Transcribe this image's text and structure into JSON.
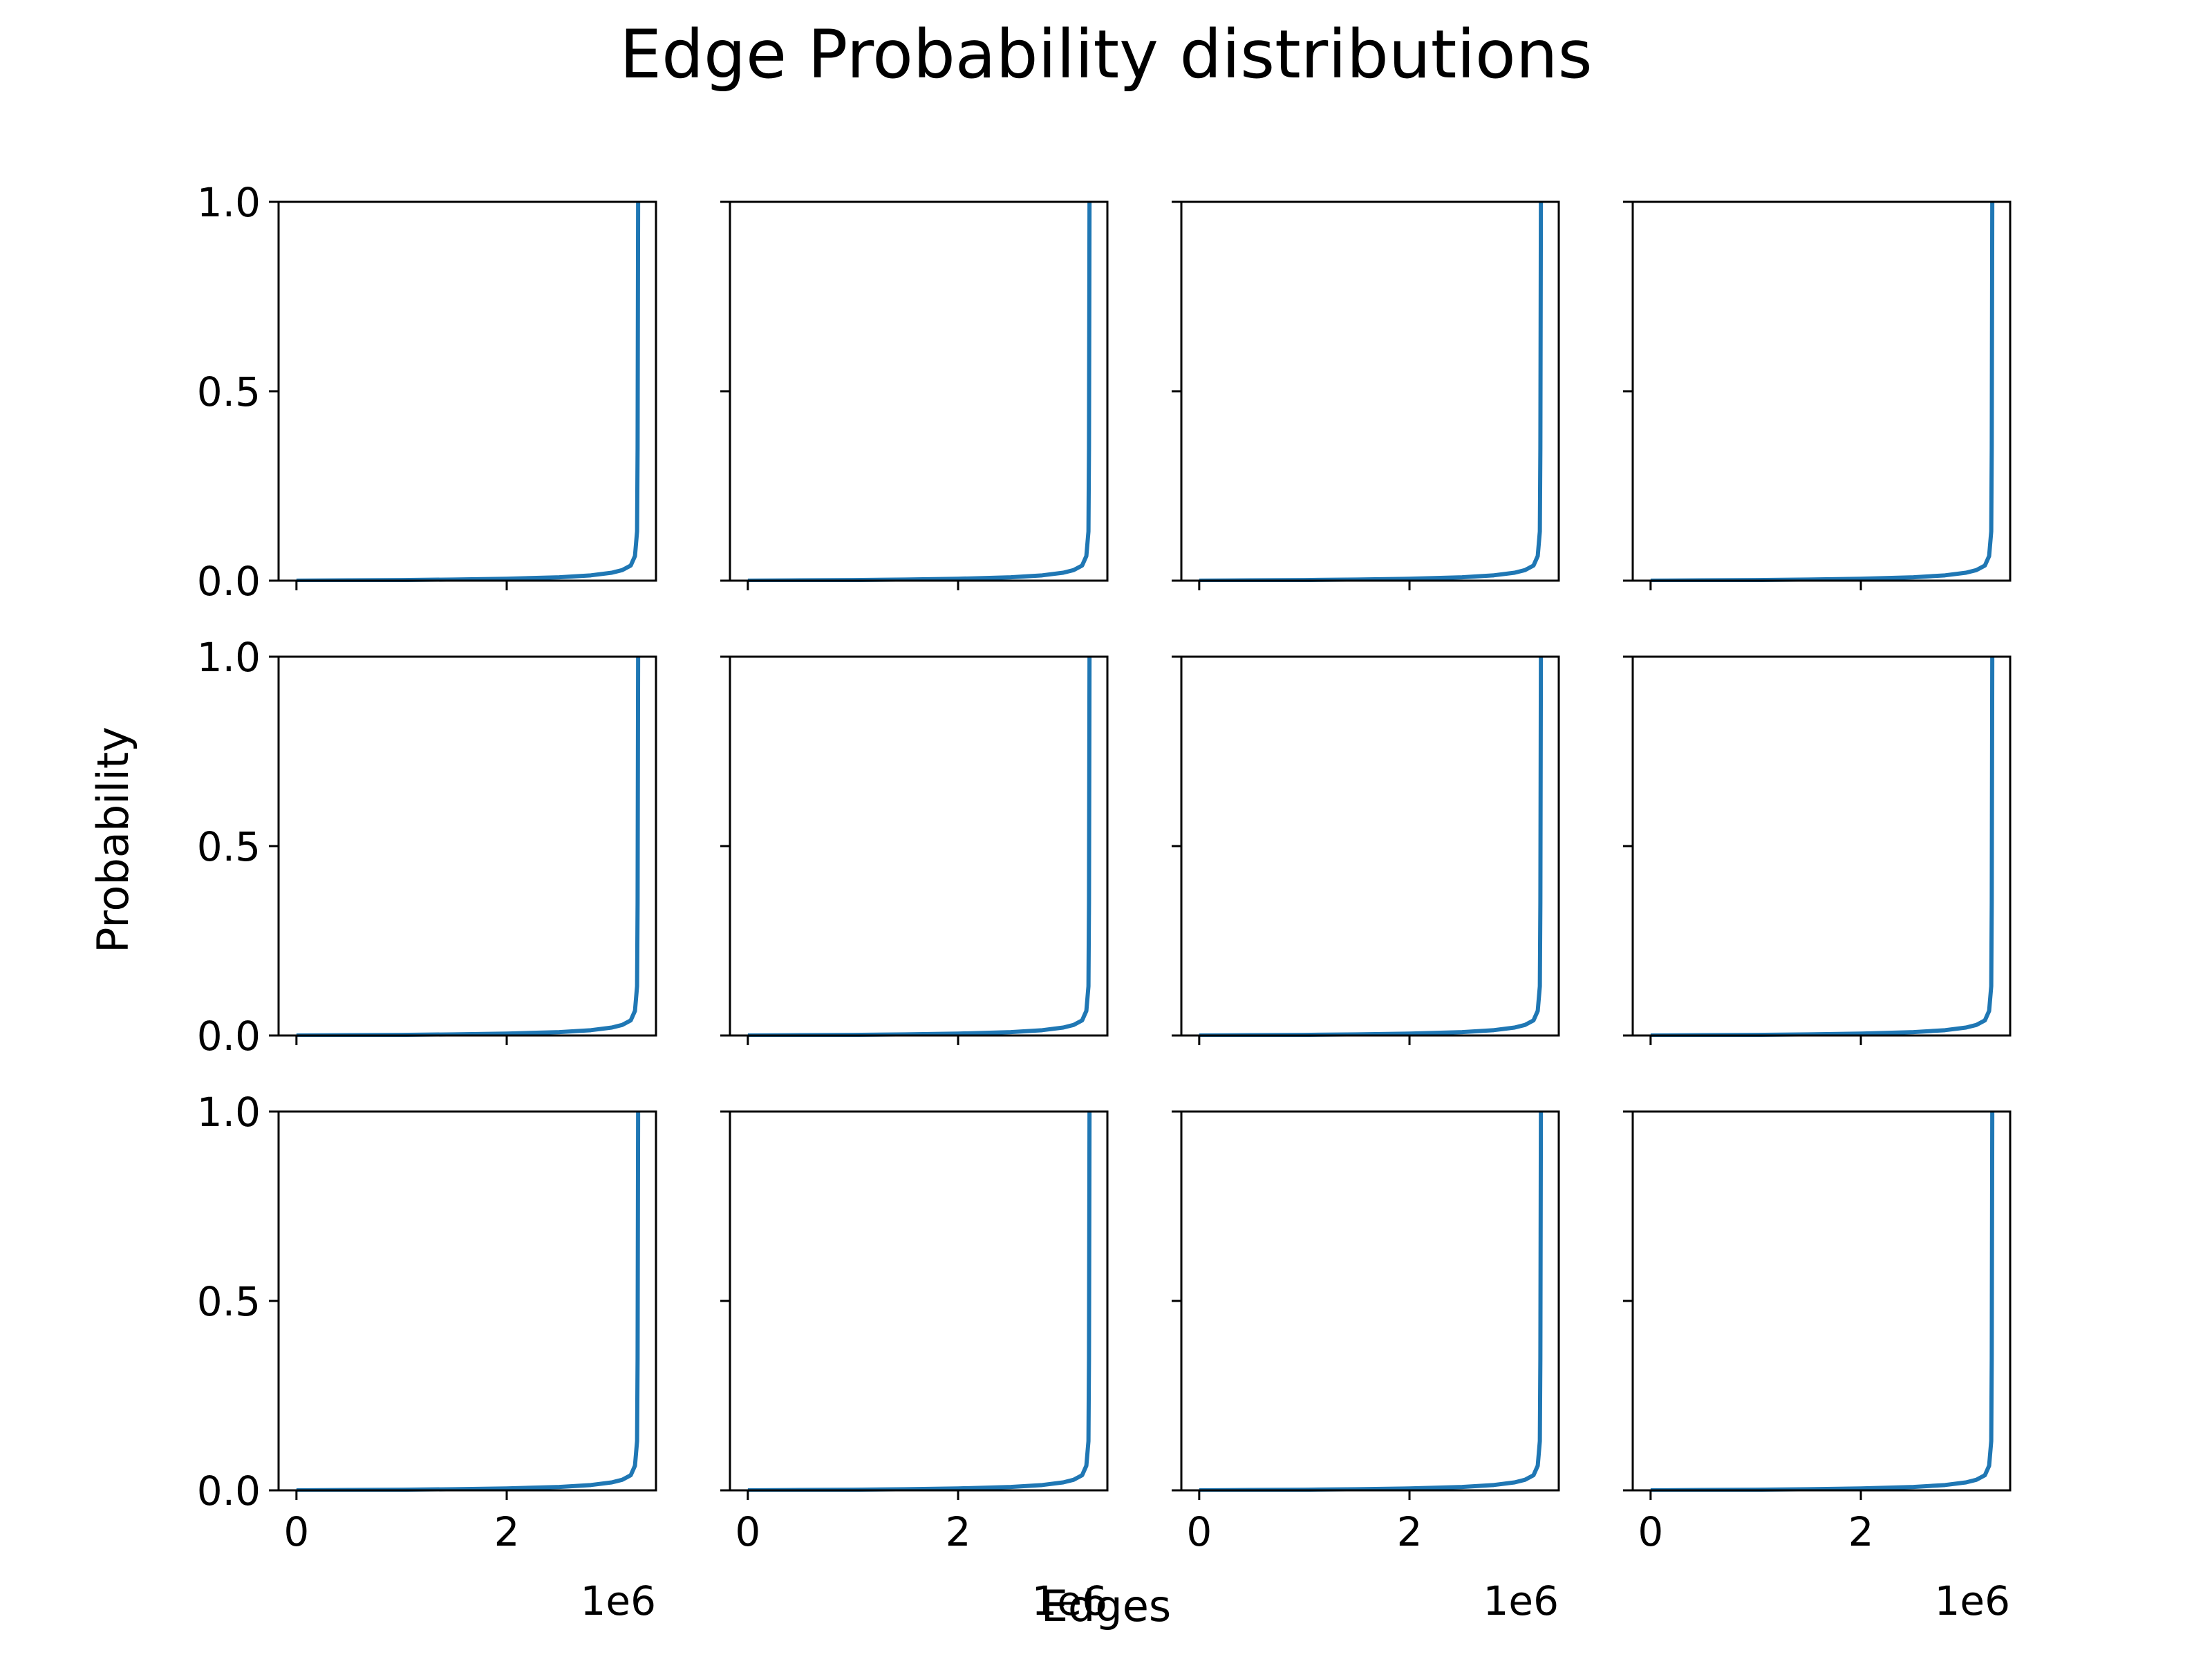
{
  "figure": {
    "title": "Edge Probability distributions",
    "xlabel": "Edges",
    "ylabel": "Probability"
  },
  "chart_data": {
    "type": "line",
    "layout": {
      "rows": 3,
      "cols": 4,
      "sharex": true,
      "sharey": true
    },
    "xlim": [
      -0.17,
      3.42
    ],
    "ylim": [
      0,
      1
    ],
    "x_ticks": [
      0,
      2
    ],
    "x_tick_labels": [
      "0",
      "2"
    ],
    "x_offset_label": "1e6",
    "y_ticks": [
      0,
      0.5,
      1
    ],
    "y_tick_labels": [
      "0.0",
      "0.5",
      "1.0"
    ],
    "line_color": "#1f77b4",
    "series_note_x_units": "millions of edges",
    "panels": [
      {
        "x": [
          0.0,
          0.5,
          1.0,
          1.5,
          2.0,
          2.5,
          2.8,
          3.0,
          3.1,
          3.18,
          3.22,
          3.24,
          3.245,
          3.25
        ],
        "y": [
          0.0,
          0.0008,
          0.0017,
          0.003,
          0.005,
          0.009,
          0.014,
          0.021,
          0.028,
          0.04,
          0.065,
          0.13,
          0.35,
          1.0
        ]
      },
      {
        "x": [
          0.0,
          0.5,
          1.0,
          1.5,
          2.0,
          2.5,
          2.8,
          3.0,
          3.1,
          3.18,
          3.22,
          3.24,
          3.245,
          3.25
        ],
        "y": [
          0.0,
          0.0008,
          0.0017,
          0.003,
          0.005,
          0.009,
          0.014,
          0.021,
          0.028,
          0.04,
          0.065,
          0.13,
          0.35,
          1.0
        ]
      },
      {
        "x": [
          0.0,
          0.5,
          1.0,
          1.5,
          2.0,
          2.5,
          2.8,
          3.0,
          3.1,
          3.18,
          3.22,
          3.24,
          3.245,
          3.25
        ],
        "y": [
          0.0,
          0.0008,
          0.0017,
          0.003,
          0.005,
          0.009,
          0.014,
          0.021,
          0.028,
          0.04,
          0.065,
          0.13,
          0.35,
          1.0
        ]
      },
      {
        "x": [
          0.0,
          0.5,
          1.0,
          1.5,
          2.0,
          2.5,
          2.8,
          3.0,
          3.1,
          3.18,
          3.22,
          3.24,
          3.245,
          3.25
        ],
        "y": [
          0.0,
          0.0008,
          0.0017,
          0.003,
          0.005,
          0.009,
          0.014,
          0.021,
          0.028,
          0.04,
          0.065,
          0.13,
          0.35,
          1.0
        ]
      },
      {
        "x": [
          0.0,
          0.5,
          1.0,
          1.5,
          2.0,
          2.5,
          2.8,
          3.0,
          3.1,
          3.18,
          3.22,
          3.24,
          3.245,
          3.25
        ],
        "y": [
          0.0,
          0.0008,
          0.0017,
          0.003,
          0.005,
          0.009,
          0.014,
          0.021,
          0.028,
          0.04,
          0.065,
          0.13,
          0.35,
          1.0
        ]
      },
      {
        "x": [
          0.0,
          0.5,
          1.0,
          1.5,
          2.0,
          2.5,
          2.8,
          3.0,
          3.1,
          3.18,
          3.22,
          3.24,
          3.245,
          3.25
        ],
        "y": [
          0.0,
          0.0008,
          0.0017,
          0.003,
          0.005,
          0.009,
          0.014,
          0.021,
          0.028,
          0.04,
          0.065,
          0.13,
          0.35,
          1.0
        ]
      },
      {
        "x": [
          0.0,
          0.5,
          1.0,
          1.5,
          2.0,
          2.5,
          2.8,
          3.0,
          3.1,
          3.18,
          3.22,
          3.24,
          3.245,
          3.25
        ],
        "y": [
          0.0,
          0.0008,
          0.0017,
          0.003,
          0.005,
          0.009,
          0.014,
          0.021,
          0.028,
          0.04,
          0.065,
          0.13,
          0.35,
          1.0
        ]
      },
      {
        "x": [
          0.0,
          0.5,
          1.0,
          1.5,
          2.0,
          2.5,
          2.8,
          3.0,
          3.1,
          3.18,
          3.22,
          3.24,
          3.245,
          3.25
        ],
        "y": [
          0.0,
          0.0008,
          0.0017,
          0.003,
          0.005,
          0.009,
          0.014,
          0.021,
          0.028,
          0.04,
          0.065,
          0.13,
          0.35,
          1.0
        ]
      },
      {
        "x": [
          0.0,
          0.5,
          1.0,
          1.5,
          2.0,
          2.5,
          2.8,
          3.0,
          3.1,
          3.18,
          3.22,
          3.24,
          3.245,
          3.25
        ],
        "y": [
          0.0,
          0.0008,
          0.0017,
          0.003,
          0.005,
          0.009,
          0.014,
          0.021,
          0.028,
          0.04,
          0.065,
          0.13,
          0.35,
          1.0
        ]
      },
      {
        "x": [
          0.0,
          0.5,
          1.0,
          1.5,
          2.0,
          2.5,
          2.8,
          3.0,
          3.1,
          3.18,
          3.22,
          3.24,
          3.245,
          3.25
        ],
        "y": [
          0.0,
          0.0008,
          0.0017,
          0.003,
          0.005,
          0.009,
          0.014,
          0.021,
          0.028,
          0.04,
          0.065,
          0.13,
          0.35,
          1.0
        ]
      },
      {
        "x": [
          0.0,
          0.5,
          1.0,
          1.5,
          2.0,
          2.5,
          2.8,
          3.0,
          3.1,
          3.18,
          3.22,
          3.24,
          3.245,
          3.25
        ],
        "y": [
          0.0,
          0.0008,
          0.0017,
          0.003,
          0.005,
          0.009,
          0.014,
          0.021,
          0.028,
          0.04,
          0.065,
          0.13,
          0.35,
          1.0
        ]
      },
      {
        "x": [
          0.0,
          0.5,
          1.0,
          1.5,
          2.0,
          2.5,
          2.8,
          3.0,
          3.1,
          3.18,
          3.22,
          3.24,
          3.245,
          3.25
        ],
        "y": [
          0.0,
          0.0008,
          0.0017,
          0.003,
          0.005,
          0.009,
          0.014,
          0.021,
          0.028,
          0.04,
          0.065,
          0.13,
          0.35,
          1.0
        ]
      }
    ]
  }
}
